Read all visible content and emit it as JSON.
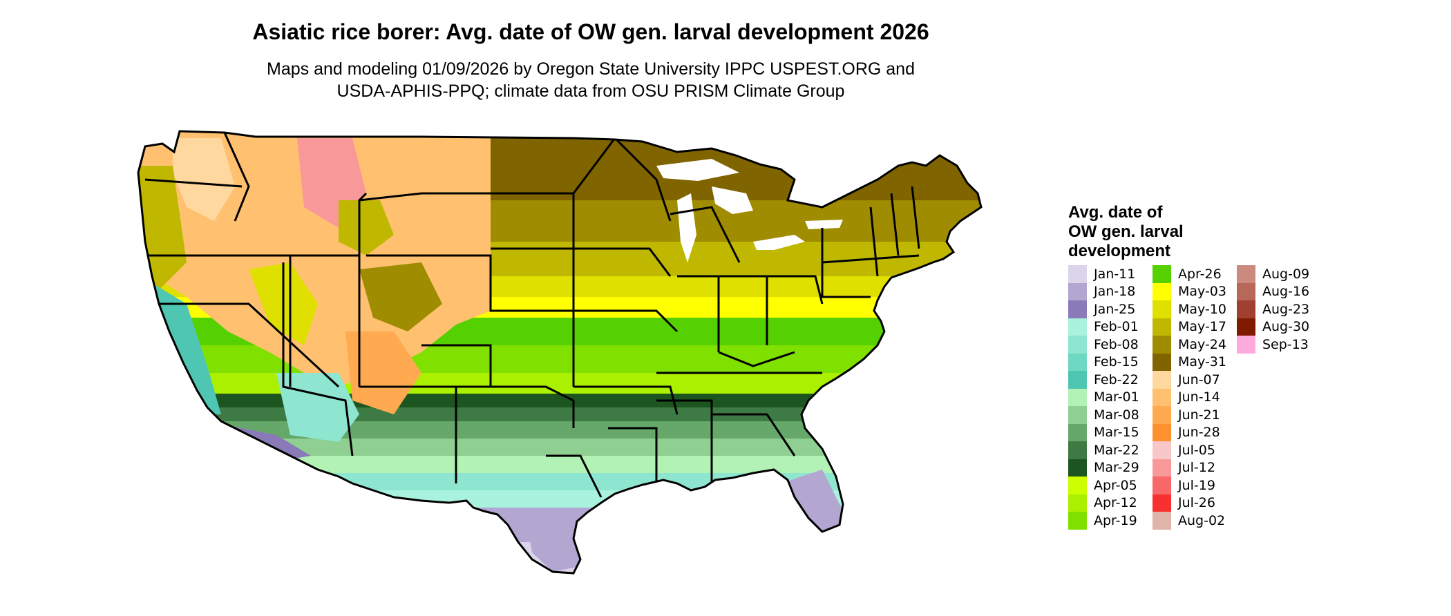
{
  "title": "Asiatic rice borer: Avg. date of OW gen. larval development 2026",
  "subtitle": {
    "line1": "Maps and modeling 01/09/2026 by Oregon State University IPPC USPEST.ORG and",
    "line2": "USDA-APHIS-PPQ; climate data from OSU PRISM Climate Group"
  },
  "legend": {
    "title_lines": [
      "Avg. date of",
      "OW gen. larval",
      "development"
    ],
    "columns": [
      [
        {
          "label": "Jan-11",
          "color": "#dcd4ea"
        },
        {
          "label": "Jan-18",
          "color": "#b3a7d1"
        },
        {
          "label": "Jan-25",
          "color": "#8a7ab8"
        },
        {
          "label": "Feb-01",
          "color": "#a8f2de"
        },
        {
          "label": "Feb-08",
          "color": "#8ee6d0"
        },
        {
          "label": "Feb-15",
          "color": "#6fd8c2"
        },
        {
          "label": "Feb-22",
          "color": "#4fc6b2"
        },
        {
          "label": "Mar-01",
          "color": "#b2f2b4"
        },
        {
          "label": "Mar-08",
          "color": "#8fcf91"
        },
        {
          "label": "Mar-15",
          "color": "#66a86a"
        },
        {
          "label": "Mar-22",
          "color": "#3e7a43"
        },
        {
          "label": "Mar-29",
          "color": "#1c5520"
        },
        {
          "label": "Apr-05",
          "color": "#ccff00"
        },
        {
          "label": "Apr-12",
          "color": "#aaf000"
        },
        {
          "label": "Apr-19",
          "color": "#80e000"
        }
      ],
      [
        {
          "label": "Apr-26",
          "color": "#55d000"
        },
        {
          "label": "May-03",
          "color": "#ffff00"
        },
        {
          "label": "May-10",
          "color": "#e0e000"
        },
        {
          "label": "May-17",
          "color": "#c0b800"
        },
        {
          "label": "May-24",
          "color": "#a08c00"
        },
        {
          "label": "May-31",
          "color": "#806400"
        },
        {
          "label": "Jun-07",
          "color": "#ffd8a0"
        },
        {
          "label": "Jun-14",
          "color": "#ffc070"
        },
        {
          "label": "Jun-21",
          "color": "#ffaa50"
        },
        {
          "label": "Jun-28",
          "color": "#ff9030"
        },
        {
          "label": "Jul-05",
          "color": "#f8c8c8"
        },
        {
          "label": "Jul-12",
          "color": "#f89898"
        },
        {
          "label": "Jul-19",
          "color": "#f86868"
        },
        {
          "label": "Jul-26",
          "color": "#f83030"
        },
        {
          "label": "Aug-02",
          "color": "#e0b4aa"
        }
      ],
      [
        {
          "label": "Aug-09",
          "color": "#cc8a7e"
        },
        {
          "label": "Aug-16",
          "color": "#b86858"
        },
        {
          "label": "Aug-23",
          "color": "#a04030"
        },
        {
          "label": "Aug-30",
          "color": "#801a00"
        },
        {
          "label": "Sep-13",
          "color": "#ffaadd"
        }
      ]
    ]
  }
}
